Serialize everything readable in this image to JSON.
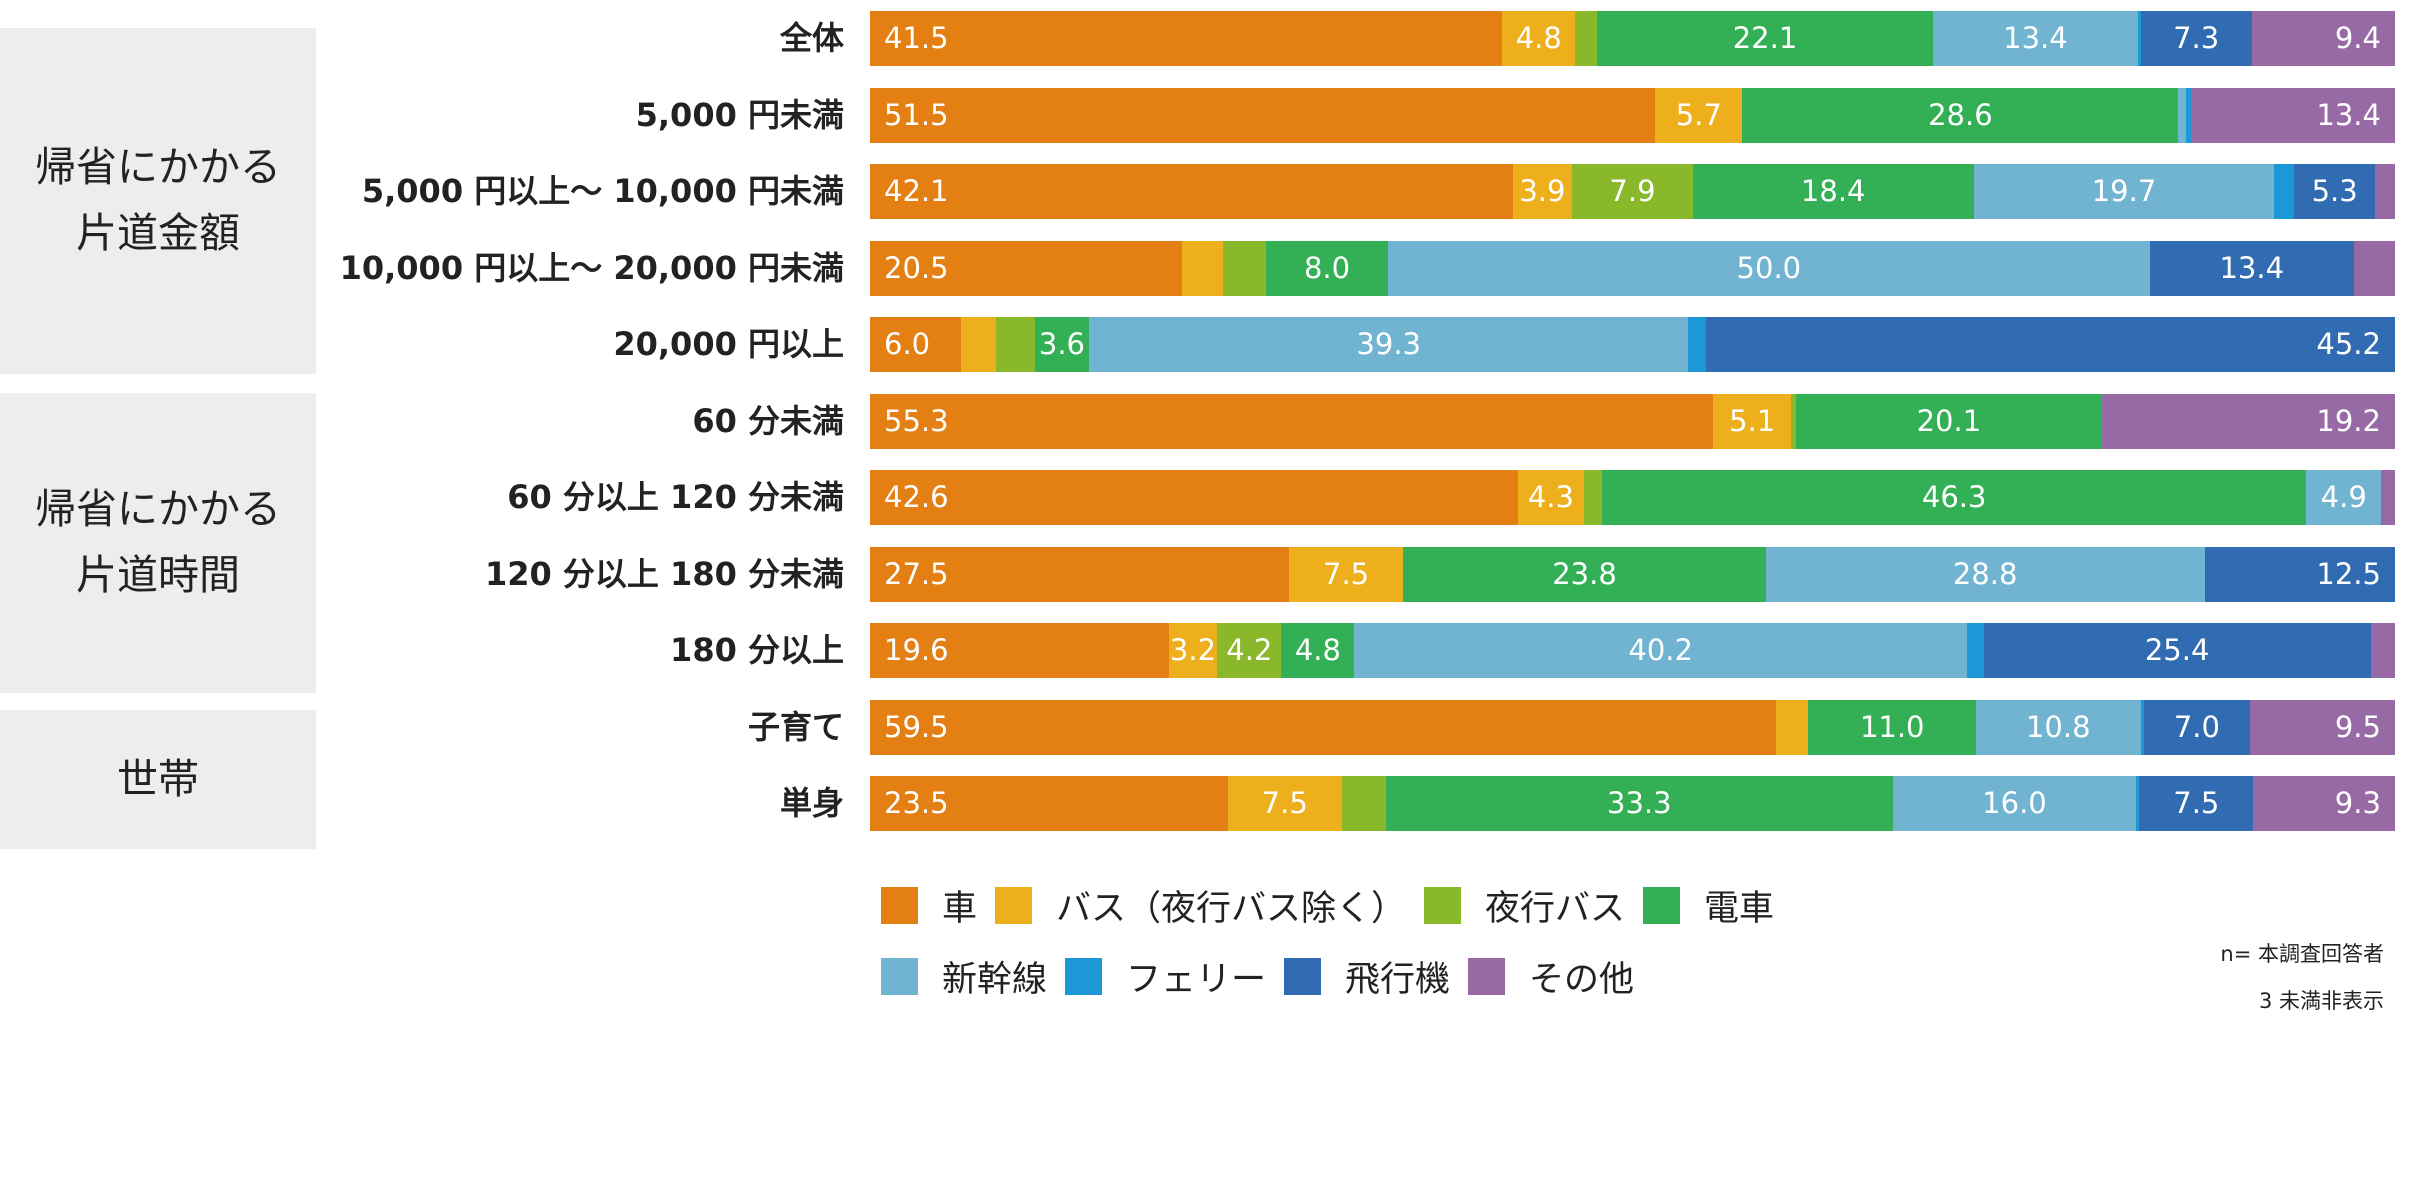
{
  "chart_data": {
    "type": "bar",
    "orientation": "horizontal-stacked-100",
    "groups": [
      {
        "label": "帰省にかかる\n片道金額",
        "rows": [
          1,
          2,
          3,
          4
        ]
      },
      {
        "label": "帰省にかかる\n片道時間",
        "rows": [
          5,
          6,
          7,
          8
        ]
      },
      {
        "label": "世帯",
        "rows": [
          9,
          10
        ]
      }
    ],
    "categories": [
      "全体",
      "5,000 円未満",
      "5,000 円以上～ 10,000 円未満",
      "10,000 円以上～ 20,000 円未満",
      "20,000 円以上",
      "60 分未満",
      "60 分以上 120 分未満",
      "120 分以上 180 分未満",
      "180 分以上",
      "子育て",
      "単身"
    ],
    "series": [
      {
        "name": "車",
        "color": "#e47f13",
        "values": [
          41.5,
          51.5,
          42.1,
          20.5,
          6.0,
          55.3,
          42.6,
          27.5,
          19.6,
          59.5,
          23.5
        ]
      },
      {
        "name": "バス（夜行バス除く）",
        "color": "#eeaf1d",
        "values": [
          4.8,
          5.7,
          3.9,
          2.7,
          2.3,
          5.1,
          4.3,
          7.5,
          3.2,
          2.1,
          7.5
        ]
      },
      {
        "name": "夜行バス",
        "color": "#89b92b",
        "values": [
          1.4,
          0,
          7.9,
          2.8,
          2.5,
          0.3,
          1.2,
          0,
          4.2,
          0,
          2.9
        ]
      },
      {
        "name": "電車",
        "color": "#33b055",
        "values": [
          22.1,
          28.6,
          18.4,
          8.0,
          3.6,
          20.1,
          46.3,
          23.8,
          4.8,
          11.0,
          33.3
        ]
      },
      {
        "name": "新幹線",
        "color": "#70b4d2",
        "values": [
          13.4,
          0.5,
          19.7,
          50.0,
          39.3,
          0,
          4.9,
          28.8,
          40.2,
          10.8,
          16.0
        ]
      },
      {
        "name": "フェリー",
        "color": "#1e97d6",
        "values": [
          0.2,
          0.3,
          1.3,
          0,
          1.2,
          0,
          0,
          0,
          1.1,
          0.2,
          0.2
        ]
      },
      {
        "name": "飛行機",
        "color": "#316bb2",
        "values": [
          7.3,
          0,
          5.3,
          13.4,
          45.2,
          0,
          0,
          12.5,
          25.4,
          7.0,
          7.5
        ]
      },
      {
        "name": "その他",
        "color": "#976aa6",
        "values": [
          9.4,
          13.4,
          1.3,
          2.7,
          0,
          19.2,
          0.6,
          0,
          1.6,
          9.5,
          9.3
        ]
      }
    ],
    "label_threshold": 3,
    "xlim": [
      0,
      100
    ],
    "legend": "bottom",
    "notes": [
      "n= 本調査回答者",
      "3 未満非表示"
    ]
  }
}
